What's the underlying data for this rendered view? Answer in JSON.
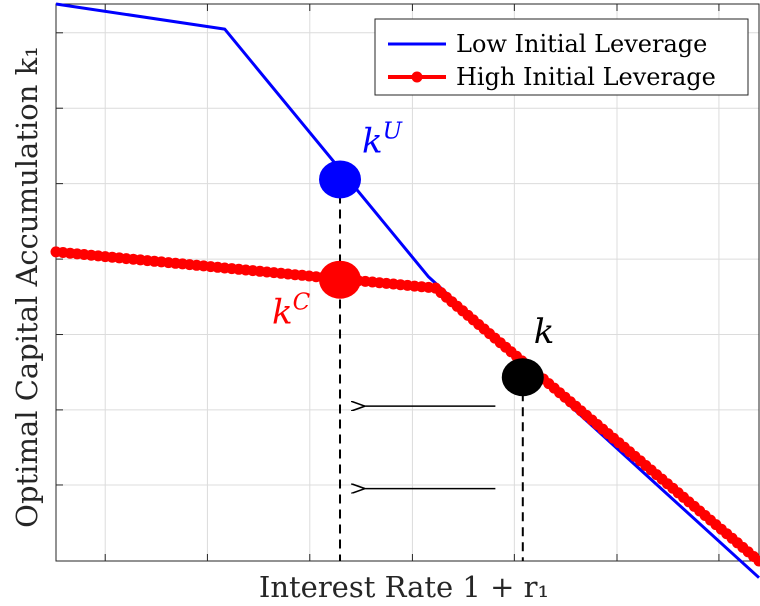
{
  "chart_data": {
    "type": "line",
    "xlabel": "Interest Rate 1 + r₁",
    "ylabel": "Optimal Capital Accumulation k₁",
    "xlim": [
      0,
      1
    ],
    "ylim": [
      0,
      1
    ],
    "grid": true,
    "legend_position": "top-right",
    "series": [
      {
        "name": "Low Initial Leverage",
        "color": "#0000ff",
        "marker": "none",
        "x": [
          0.0,
          0.24,
          0.53,
          1.0
        ],
        "y": [
          1.0,
          0.955,
          0.51,
          -0.03
        ]
      },
      {
        "name": "High Initial Leverage",
        "color": "#ff0000",
        "marker": "dot",
        "x": [
          0.0,
          0.54,
          1.0
        ],
        "y": [
          0.555,
          0.49,
          0.0
        ]
      }
    ],
    "points": [
      {
        "label": "k",
        "sup": "U",
        "color": "#0000ff",
        "x": 0.404,
        "y": 0.685
      },
      {
        "label": "k",
        "sup": "C",
        "color": "#ff0000",
        "x": 0.404,
        "y": 0.505
      },
      {
        "label": "k",
        "sup": "",
        "color": "#000000",
        "x": 0.664,
        "y": 0.33
      }
    ],
    "annotations": {
      "arrows": [
        {
          "from": [
            0.625,
            0.278
          ],
          "to": [
            0.438,
            0.278
          ]
        },
        {
          "from": [
            0.625,
            0.13
          ],
          "to": [
            0.438,
            0.13
          ]
        }
      ]
    }
  },
  "colors": {
    "grid": "#dcdcdc",
    "axis": "#262626"
  }
}
